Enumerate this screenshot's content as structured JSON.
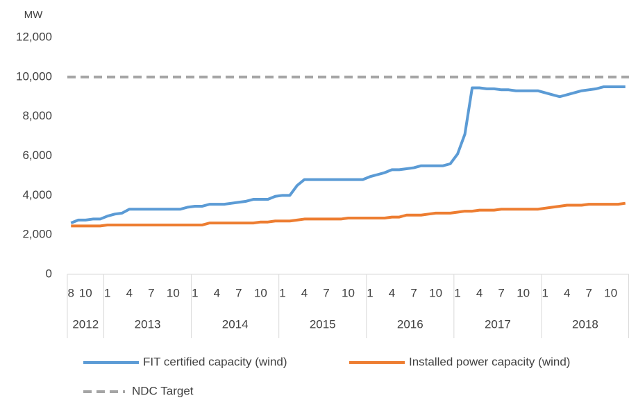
{
  "chart_data": {
    "type": "line",
    "y_unit": "MW",
    "ylim": [
      0,
      12000
    ],
    "yticks": [
      0,
      {
        "value": 2000,
        "label": "2,000"
      },
      {
        "value": 4000,
        "label": "4,000"
      },
      {
        "value": 6000,
        "label": "6,000"
      },
      {
        "value": 8000,
        "label": "8,000"
      },
      {
        "value": 10000,
        "label": "10,000"
      },
      {
        "value": 12000,
        "label": "12,000"
      }
    ],
    "category_groups": [
      {
        "label": "2012",
        "categories": [
          "8",
          null,
          "10",
          null,
          null
        ]
      },
      {
        "label": "2013",
        "categories": [
          "1",
          null,
          null,
          "4",
          null,
          null,
          "7",
          null,
          null,
          "10",
          null,
          null
        ]
      },
      {
        "label": "2014",
        "categories": [
          "1",
          null,
          null,
          "4",
          null,
          null,
          "7",
          null,
          null,
          "10",
          null,
          null
        ]
      },
      {
        "label": "2015",
        "categories": [
          "1",
          null,
          null,
          "4",
          null,
          null,
          "7",
          null,
          null,
          "10",
          null,
          null
        ]
      },
      {
        "label": "2016",
        "categories": [
          "1",
          null,
          null,
          "4",
          null,
          null,
          "7",
          null,
          null,
          "10",
          null,
          null
        ]
      },
      {
        "label": "2017",
        "categories": [
          "1",
          null,
          null,
          "4",
          null,
          null,
          "7",
          null,
          null,
          "10",
          null,
          null
        ]
      },
      {
        "label": "2018",
        "categories": [
          "1",
          null,
          null,
          "4",
          null,
          null,
          "7",
          null,
          null,
          "10",
          null,
          null
        ]
      }
    ],
    "series": [
      {
        "name": "FIT certified capacity (wind)",
        "color": "#5b9bd5",
        "values": [
          2600,
          2750,
          2750,
          2800,
          2800,
          2950,
          3050,
          3100,
          3300,
          3300,
          3300,
          3300,
          3300,
          3300,
          3300,
          3300,
          3400,
          3450,
          3450,
          3550,
          3550,
          3550,
          3600,
          3650,
          3700,
          3800,
          3800,
          3800,
          3950,
          4000,
          4000,
          4500,
          4800,
          4800,
          4800,
          4800,
          4800,
          4800,
          4800,
          4800,
          4800,
          4950,
          5050,
          5150,
          5300,
          5300,
          5350,
          5400,
          5500,
          5500,
          5500,
          5500,
          5600,
          6100,
          7100,
          9450,
          9450,
          9400,
          9400,
          9350,
          9350,
          9300,
          9300,
          9300,
          9300,
          9200,
          9100,
          9000,
          9100,
          9200,
          9300,
          9350,
          9400,
          9500,
          9500,
          9500,
          9500
        ]
      },
      {
        "name": "Installed power capacity (wind)",
        "color": "#ed7d31",
        "values": [
          2450,
          2450,
          2450,
          2450,
          2450,
          2500,
          2500,
          2500,
          2500,
          2500,
          2500,
          2500,
          2500,
          2500,
          2500,
          2500,
          2500,
          2500,
          2500,
          2600,
          2600,
          2600,
          2600,
          2600,
          2600,
          2600,
          2650,
          2650,
          2700,
          2700,
          2700,
          2750,
          2800,
          2800,
          2800,
          2800,
          2800,
          2800,
          2850,
          2850,
          2850,
          2850,
          2850,
          2850,
          2900,
          2900,
          3000,
          3000,
          3000,
          3050,
          3100,
          3100,
          3100,
          3150,
          3200,
          3200,
          3250,
          3250,
          3250,
          3300,
          3300,
          3300,
          3300,
          3300,
          3300,
          3350,
          3400,
          3450,
          3500,
          3500,
          3500,
          3550,
          3550,
          3550,
          3550,
          3550,
          3600
        ]
      }
    ],
    "reference_lines": [
      {
        "name": "NDC Target",
        "value": 10000,
        "color": "#a5a5a5",
        "dashed": true
      }
    ]
  }
}
